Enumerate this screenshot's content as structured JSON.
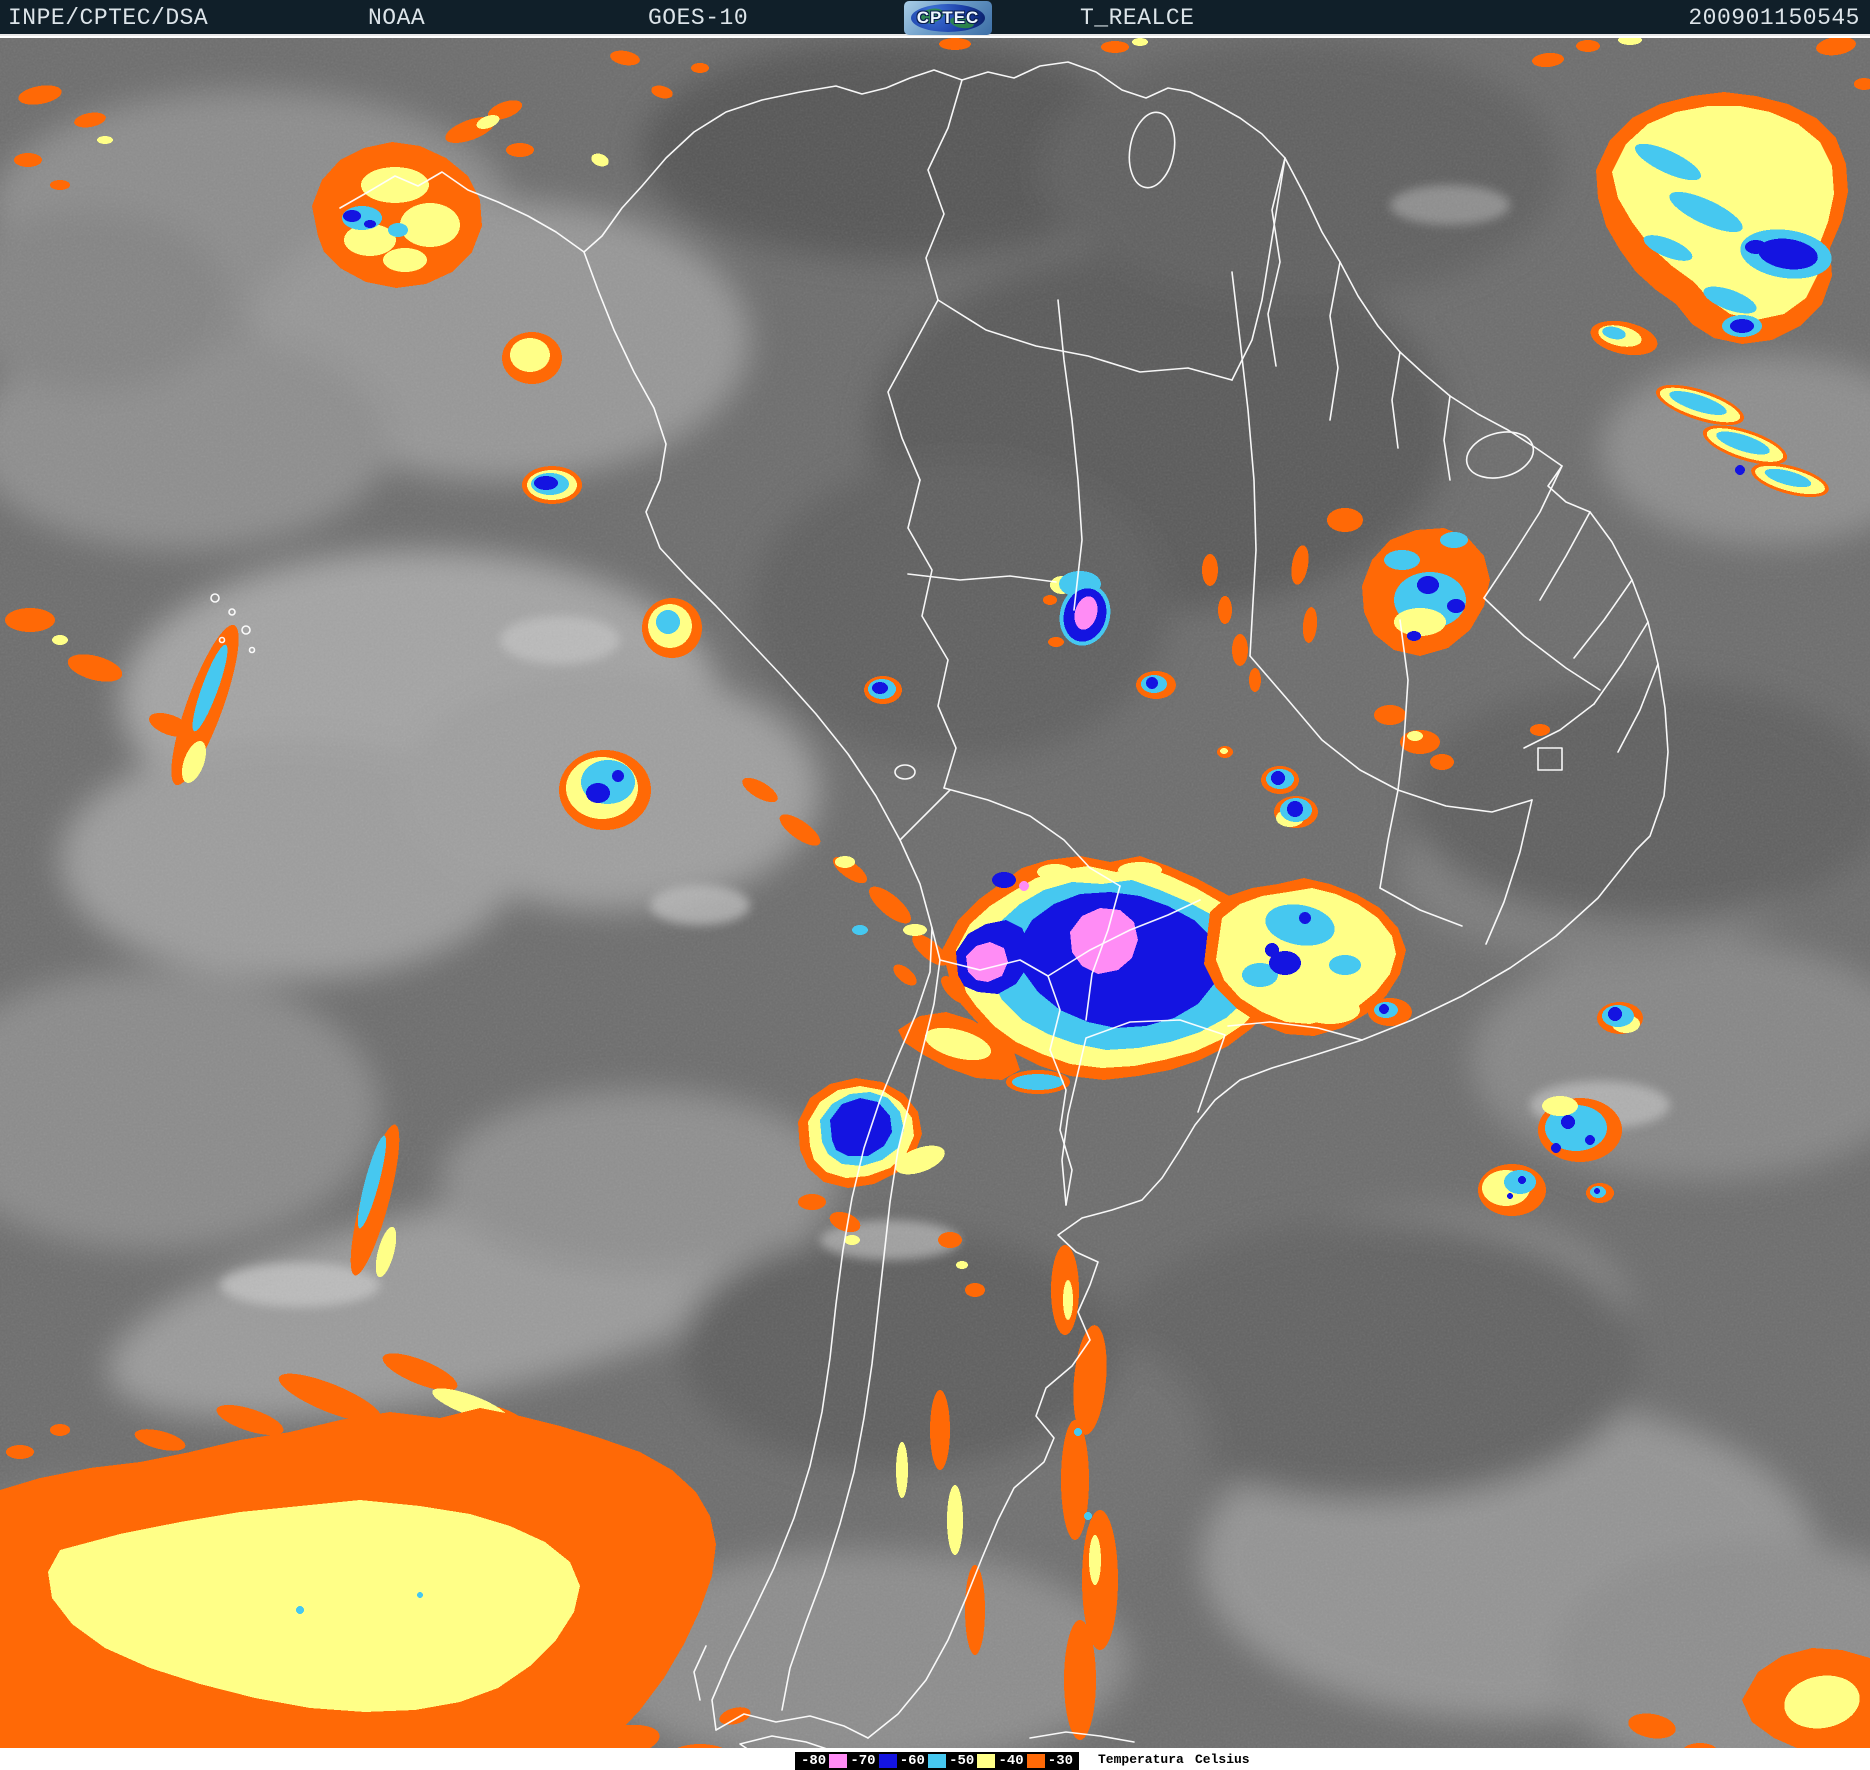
{
  "header": {
    "agency": "INPE/CPTEC/DSA",
    "org": "NOAA",
    "satellite": "GOES-10",
    "logo_text": "CPTEC",
    "product": "T_REALCE",
    "timestamp": "200901150545"
  },
  "legend": {
    "tick_labels": [
      "-80",
      "-70",
      "-60",
      "-50",
      "-40",
      "-30"
    ],
    "swatch_colors": [
      "#FF8CF5",
      "#1414E1",
      "#46C8F0",
      "#FFFF87",
      "#FF6906"
    ],
    "title": "Temperatura",
    "unit": "Celsius"
  },
  "palette": {
    "header_bg": "#101F29",
    "header_text": "#DCE4E9",
    "border": "#FFFFFF",
    "orange": "#FF6906",
    "yellow": "#FFFF87",
    "cyan": "#46C8F0",
    "blue": "#1414E1",
    "pink": "#FF8CF5"
  }
}
